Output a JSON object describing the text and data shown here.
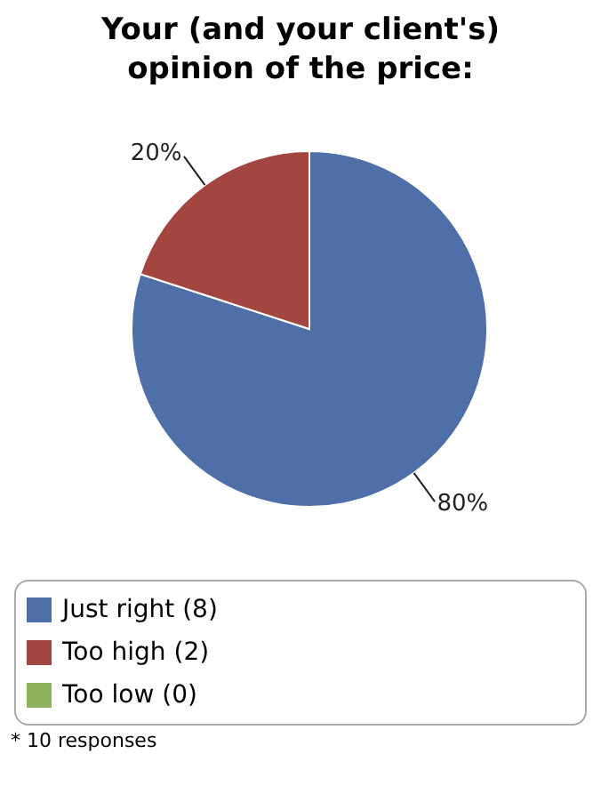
{
  "chart_data": {
    "type": "pie",
    "title": "Your (and your client's) opinion of the price:",
    "categories": [
      "Just right (8)",
      "Too high (2)",
      "Too low (0)"
    ],
    "values": [
      80,
      20,
      0
    ],
    "colors": [
      "#4e6fa7",
      "#a2463f",
      "#8db35c"
    ],
    "value_labels": [
      "80%",
      "20%",
      null
    ],
    "legend": "bottom",
    "annotations": [
      "* 10 responses"
    ]
  }
}
